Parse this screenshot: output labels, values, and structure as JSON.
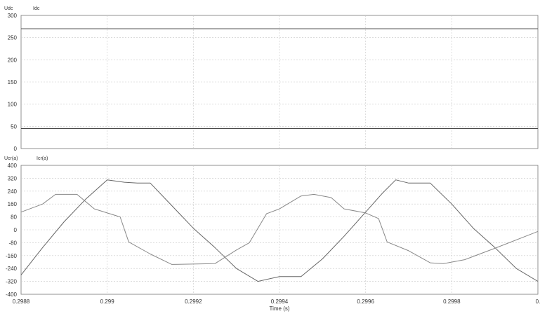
{
  "chart_data": [
    {
      "type": "line",
      "legend": [
        "Udc",
        "Idc"
      ],
      "ylim": [
        0,
        300
      ],
      "yticks": [
        "0",
        "50",
        "100",
        "150",
        "200",
        "250",
        "300"
      ],
      "xlim": [
        0.2988,
        0.3
      ],
      "grid": true,
      "series": [
        {
          "name": "Udc",
          "x": [
            0.2988,
            0.3
          ],
          "values": [
            270,
            270
          ]
        },
        {
          "name": "Idc",
          "x": [
            0.2988,
            0.3
          ],
          "values": [
            45,
            45
          ]
        }
      ]
    },
    {
      "type": "line",
      "legend": [
        "Ucr(a)",
        "Icr(a)"
      ],
      "ylim": [
        -400,
        400
      ],
      "yticks": [
        "-400",
        "-320",
        "-240",
        "-160",
        "-80",
        "0",
        "80",
        "160",
        "240",
        "320",
        "400"
      ],
      "xlim": [
        0.2988,
        0.3
      ],
      "xticks": [
        "0.2988",
        "0.299",
        "0.2992",
        "0.2994",
        "0.2996",
        "0.2998",
        "0."
      ],
      "xlabel": "Time (s)",
      "grid": true,
      "series": [
        {
          "name": "Ucr(a)",
          "x": [
            0.2988,
            0.29885,
            0.2989,
            0.29895,
            0.299,
            0.29904,
            0.29907,
            0.2991,
            0.29915,
            0.2992,
            0.29925,
            0.2993,
            0.29935,
            0.2994,
            0.29945,
            0.2995,
            0.29955,
            0.2996,
            0.29964,
            0.29967,
            0.2997,
            0.29975,
            0.2998,
            0.29985,
            0.2999,
            0.29995,
            0.3
          ],
          "values": [
            -280,
            -110,
            50,
            190,
            310,
            295,
            290,
            290,
            150,
            10,
            -110,
            -240,
            -320,
            -290,
            -290,
            -180,
            -40,
            110,
            230,
            310,
            290,
            290,
            160,
            10,
            -110,
            -240,
            -320
          ]
        },
        {
          "name": "Icr(a)",
          "x": [
            0.2988,
            0.29883,
            0.29885,
            0.29888,
            0.29893,
            0.29897,
            0.29903,
            0.29905,
            0.2991,
            0.29915,
            0.29925,
            0.2993,
            0.29933,
            0.29937,
            0.2994,
            0.29945,
            0.29948,
            0.29952,
            0.29955,
            0.2996,
            0.29963,
            0.29965,
            0.2997,
            0.29975,
            0.29978,
            0.29983,
            0.2999,
            0.3
          ],
          "values": [
            110,
            140,
            160,
            220,
            220,
            130,
            80,
            -75,
            -150,
            -215,
            -210,
            -125,
            -80,
            100,
            130,
            210,
            220,
            200,
            130,
            105,
            70,
            -75,
            -130,
            -205,
            -210,
            -185,
            -115,
            -10
          ]
        }
      ]
    }
  ]
}
